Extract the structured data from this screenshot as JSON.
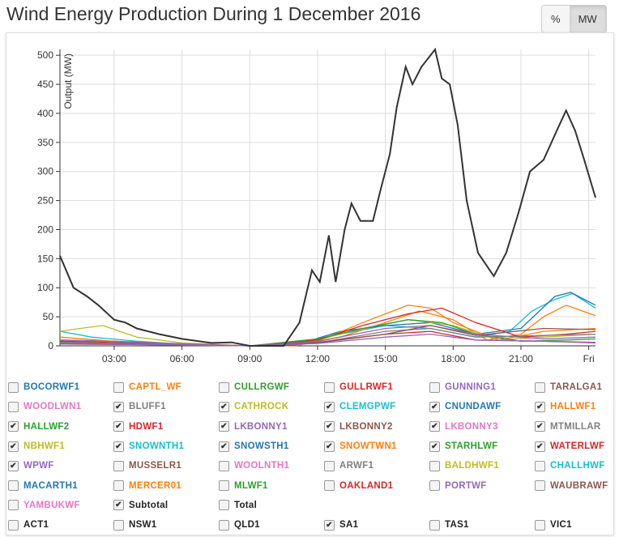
{
  "title": "Wind Energy Production During 1 December 2016",
  "unit_buttons": [
    {
      "label": "%",
      "active": false
    },
    {
      "label": "MW",
      "active": true
    }
  ],
  "chart_data": {
    "type": "line",
    "title": "Wind Energy Production During 1 December 2016",
    "ylabel": "Output (MW)",
    "xlabel": "",
    "ylim": [
      0,
      510
    ],
    "xlim": [
      0.6,
      24.3
    ],
    "yticks": [
      0,
      50,
      100,
      150,
      200,
      250,
      300,
      350,
      400,
      450,
      500
    ],
    "xticks": [
      {
        "h": 3,
        "label": "03:00"
      },
      {
        "h": 6,
        "label": "06:00"
      },
      {
        "h": 9,
        "label": "09:00"
      },
      {
        "h": 12,
        "label": "12:00"
      },
      {
        "h": 15,
        "label": "15:00"
      },
      {
        "h": 18,
        "label": "18:00"
      },
      {
        "h": 21,
        "label": "21:00"
      },
      {
        "h": 24,
        "label": "Fri"
      }
    ],
    "grid": true,
    "series": [
      {
        "name": "Subtotal",
        "color": "#333333",
        "x": [
          0.6,
          1.2,
          1.8,
          2.3,
          3,
          3.5,
          4,
          5,
          6,
          7.3,
          8.2,
          9,
          10.5,
          11.2,
          11.75,
          12.1,
          12.5,
          12.8,
          13.2,
          13.5,
          13.9,
          14.45,
          14.8,
          15.2,
          15.5,
          15.9,
          16.2,
          16.6,
          17.2,
          17.5,
          17.85,
          18.2,
          18.6,
          19.1,
          19.8,
          20.35,
          20.9,
          21.4,
          22,
          22.7,
          23,
          23.4,
          23.8,
          24.3
        ],
        "y": [
          155,
          100,
          85,
          70,
          45,
          40,
          30,
          20,
          12,
          5,
          6,
          0,
          0,
          40,
          130,
          110,
          190,
          110,
          200,
          245,
          215,
          215,
          270,
          330,
          410,
          480,
          450,
          480,
          510,
          460,
          450,
          380,
          250,
          160,
          120,
          160,
          230,
          300,
          320,
          380,
          405,
          370,
          320,
          255
        ]
      },
      {
        "name": "CLEMGPWF",
        "color": "#17becf",
        "x": [
          0.6,
          2,
          4,
          6,
          9,
          11,
          13,
          15,
          17,
          19,
          20.5,
          21.5,
          22.5,
          23.3,
          24.3
        ],
        "y": [
          25,
          15,
          8,
          3,
          0,
          2,
          20,
          35,
          30,
          15,
          25,
          60,
          80,
          90,
          65
        ]
      },
      {
        "name": "HALLWF1",
        "color": "#ff7f0e",
        "x": [
          0.6,
          3,
          6,
          9,
          11,
          13,
          15,
          16.5,
          18,
          19.5,
          21,
          22,
          23,
          24.3
        ],
        "y": [
          5,
          3,
          2,
          0,
          0,
          15,
          40,
          60,
          45,
          10,
          20,
          50,
          70,
          52
        ]
      },
      {
        "name": "CNUNDAWF",
        "color": "#1f77b4",
        "x": [
          0.6,
          3,
          6,
          9,
          11,
          13,
          15,
          17,
          19,
          21,
          22.5,
          23.2,
          24.3
        ],
        "y": [
          10,
          8,
          3,
          0,
          1,
          25,
          35,
          40,
          20,
          30,
          85,
          92,
          70
        ]
      },
      {
        "name": "NBHWF1",
        "color": "#bcbd22",
        "x": [
          0.6,
          1.5,
          2.5,
          4,
          6,
          9,
          12,
          14,
          16,
          18,
          20,
          22,
          24.3
        ],
        "y": [
          25,
          30,
          35,
          15,
          5,
          0,
          10,
          30,
          45,
          35,
          10,
          15,
          20
        ]
      },
      {
        "name": "SNOWTWN1",
        "color": "#ff7f0e",
        "x": [
          0.6,
          4,
          9,
          12,
          14,
          16,
          17,
          18,
          20,
          22,
          24.3
        ],
        "y": [
          15,
          5,
          0,
          8,
          40,
          70,
          65,
          40,
          10,
          25,
          30
        ]
      },
      {
        "name": "HDWF1",
        "color": "#d62728",
        "x": [
          0.6,
          5,
          9,
          12,
          14,
          16,
          17.5,
          19,
          21,
          23,
          24.3
        ],
        "y": [
          8,
          4,
          0,
          10,
          35,
          55,
          65,
          40,
          15,
          20,
          25
        ]
      },
      {
        "name": "STARHLWF",
        "color": "#2ca02c",
        "x": [
          0.6,
          5,
          9,
          12,
          14,
          16,
          17.5,
          19,
          21,
          23,
          24.3
        ],
        "y": [
          5,
          3,
          0,
          12,
          30,
          45,
          40,
          20,
          8,
          10,
          12
        ]
      },
      {
        "name": "WATERLWF",
        "color": "#d62728",
        "x": [
          0.6,
          5,
          9,
          12,
          15,
          17,
          19,
          22,
          24.3
        ],
        "y": [
          3,
          2,
          0,
          5,
          20,
          25,
          10,
          8,
          5
        ]
      },
      {
        "name": "LKBONNY1",
        "color": "#9467bd",
        "x": [
          0.6,
          5,
          9,
          12,
          15,
          17,
          19,
          22,
          24.3
        ],
        "y": [
          10,
          5,
          0,
          8,
          30,
          35,
          20,
          12,
          15
        ]
      },
      {
        "name": "MTMILLAR",
        "color": "#7f7f7f",
        "x": [
          0.6,
          5,
          9,
          12,
          15,
          17,
          19,
          22,
          24.3
        ],
        "y": [
          6,
          3,
          0,
          5,
          25,
          30,
          15,
          18,
          20
        ]
      },
      {
        "name": "LKBONNY2",
        "color": "#8c564b",
        "x": [
          0.6,
          5,
          9,
          12,
          15,
          17,
          19,
          22,
          24.3
        ],
        "y": [
          4,
          2,
          0,
          6,
          20,
          35,
          18,
          30,
          28
        ]
      },
      {
        "name": "WPWF",
        "color": "#9467bd",
        "x": [
          0.6,
          5,
          9,
          12,
          15,
          17,
          19,
          22,
          24.3
        ],
        "y": [
          3,
          2,
          0,
          4,
          15,
          20,
          10,
          8,
          6
        ]
      }
    ]
  },
  "legend": {
    "farms": [
      {
        "label": "BOCORWF1",
        "color": "#1f77b4",
        "checked": false
      },
      {
        "label": "CAPTL_WF",
        "color": "#ff7f0e",
        "checked": false
      },
      {
        "label": "CULLRGWF",
        "color": "#2ca02c",
        "checked": false
      },
      {
        "label": "GULLRWF1",
        "color": "#d62728",
        "checked": false
      },
      {
        "label": "GUNNING1",
        "color": "#9467bd",
        "checked": false
      },
      {
        "label": "TARALGA1",
        "color": "#8c564b",
        "checked": false
      },
      {
        "label": "WOODLWN1",
        "color": "#e377c2",
        "checked": false
      },
      {
        "label": "BLUFF1",
        "color": "#7f7f7f",
        "checked": true
      },
      {
        "label": "CATHROCK",
        "color": "#bcbd22",
        "checked": true
      },
      {
        "label": "CLEMGPWF",
        "color": "#17becf",
        "checked": true
      },
      {
        "label": "CNUNDAWF",
        "color": "#1f77b4",
        "checked": true
      },
      {
        "label": "HALLWF1",
        "color": "#ff7f0e",
        "checked": true
      },
      {
        "label": "HALLWF2",
        "color": "#2ca02c",
        "checked": true
      },
      {
        "label": "HDWF1",
        "color": "#d62728",
        "checked": true
      },
      {
        "label": "LKBONNY1",
        "color": "#9467bd",
        "checked": true
      },
      {
        "label": "LKBONNY2",
        "color": "#8c564b",
        "checked": true
      },
      {
        "label": "LKBONNY3",
        "color": "#e377c2",
        "checked": true
      },
      {
        "label": "MTMILLAR",
        "color": "#7f7f7f",
        "checked": true
      },
      {
        "label": "NBHWF1",
        "color": "#bcbd22",
        "checked": true
      },
      {
        "label": "SNOWNTH1",
        "color": "#17becf",
        "checked": true
      },
      {
        "label": "SNOWSTH1",
        "color": "#1f77b4",
        "checked": true
      },
      {
        "label": "SNOWTWN1",
        "color": "#ff7f0e",
        "checked": true
      },
      {
        "label": "STARHLWF",
        "color": "#2ca02c",
        "checked": true
      },
      {
        "label": "WATERLWF",
        "color": "#d62728",
        "checked": true
      },
      {
        "label": "WPWF",
        "color": "#9467bd",
        "checked": true
      },
      {
        "label": "MUSSELR1",
        "color": "#8c564b",
        "checked": false
      },
      {
        "label": "WOOLNTH1",
        "color": "#e377c2",
        "checked": false
      },
      {
        "label": "ARWF1",
        "color": "#7f7f7f",
        "checked": false
      },
      {
        "label": "BALDHWF1",
        "color": "#bcbd22",
        "checked": false
      },
      {
        "label": "CHALLHWF",
        "color": "#17becf",
        "checked": false
      },
      {
        "label": "MACARTH1",
        "color": "#1f77b4",
        "checked": false
      },
      {
        "label": "MERCER01",
        "color": "#ff7f0e",
        "checked": false
      },
      {
        "label": "MLWF1",
        "color": "#2ca02c",
        "checked": false
      },
      {
        "label": "OAKLAND1",
        "color": "#d62728",
        "checked": false
      },
      {
        "label": "PORTWF",
        "color": "#9467bd",
        "checked": false
      },
      {
        "label": "WAUBRAWF",
        "color": "#8c564b",
        "checked": false
      },
      {
        "label": "YAMBUKWF",
        "color": "#e377c2",
        "checked": false
      },
      {
        "label": "Subtotal",
        "color": "#222222",
        "checked": true
      },
      {
        "label": "Total",
        "color": "#222222",
        "checked": false
      }
    ],
    "regions": [
      {
        "label": "ACT1",
        "checked": false
      },
      {
        "label": "NSW1",
        "checked": false
      },
      {
        "label": "QLD1",
        "checked": false
      },
      {
        "label": "SA1",
        "checked": true
      },
      {
        "label": "TAS1",
        "checked": false
      },
      {
        "label": "VIC1",
        "checked": false
      }
    ]
  }
}
